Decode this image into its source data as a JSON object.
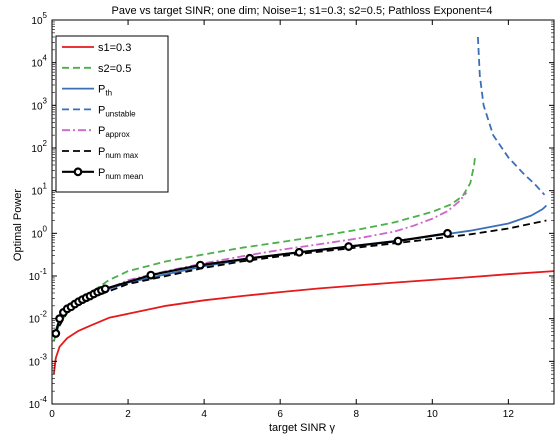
{
  "chart_data": {
    "type": "line",
    "title": "Pave vs target SINR; one dim; Noise=1; s1=0.3; s2=0.5; Pathloss Exponent=4",
    "xlabel": "target SINR γ",
    "ylabel": "Optimal Power",
    "xlim": [
      0,
      13.2
    ],
    "ylim": [
      0.0001,
      100000
    ],
    "yscale": "log",
    "grid": false,
    "legend_position": "top-left",
    "x_ticks": [
      {
        "value": 0,
        "label": "0"
      },
      {
        "value": 2,
        "label": "2"
      },
      {
        "value": 4,
        "label": "4"
      },
      {
        "value": 6,
        "label": "6"
      },
      {
        "value": 8,
        "label": "8"
      },
      {
        "value": 10,
        "label": "10"
      },
      {
        "value": 12,
        "label": "12"
      }
    ],
    "y_ticks": [
      {
        "value": 0.0001,
        "base": "10",
        "exp": "-4"
      },
      {
        "value": 0.001,
        "base": "10",
        "exp": "-3"
      },
      {
        "value": 0.01,
        "base": "10",
        "exp": "-2"
      },
      {
        "value": 0.1,
        "base": "10",
        "exp": "-1"
      },
      {
        "value": 1,
        "base": "10",
        "exp": "0"
      },
      {
        "value": 10,
        "base": "10",
        "exp": "1"
      },
      {
        "value": 100,
        "base": "10",
        "exp": "2"
      },
      {
        "value": 1000,
        "base": "10",
        "exp": "3"
      },
      {
        "value": 10000,
        "base": "10",
        "exp": "4"
      },
      {
        "value": 100000,
        "base": "10",
        "exp": "5"
      }
    ],
    "series": [
      {
        "name": "s1=0.3",
        "legend_main": "s1=0.3",
        "legend_sub": "",
        "color": "#e41a1c",
        "dash": "solid",
        "marker": "none",
        "points": [
          [
            0.05,
            0.0005
          ],
          [
            0.1,
            0.0012
          ],
          [
            0.2,
            0.0022
          ],
          [
            0.4,
            0.0035
          ],
          [
            0.7,
            0.0052
          ],
          [
            1.0,
            0.0068
          ],
          [
            1.5,
            0.0105
          ],
          [
            2.0,
            0.013
          ],
          [
            3.0,
            0.02
          ],
          [
            4.0,
            0.027
          ],
          [
            5.0,
            0.034
          ],
          [
            6.0,
            0.042
          ],
          [
            7.0,
            0.051
          ],
          [
            8.0,
            0.06
          ],
          [
            9.0,
            0.07
          ],
          [
            10.0,
            0.081
          ],
          [
            11.0,
            0.094
          ],
          [
            12.0,
            0.11
          ],
          [
            13.2,
            0.13
          ]
        ]
      },
      {
        "name": "s2=0.5",
        "legend_main": "s2=0.5",
        "legend_sub": "",
        "color": "#4daf4a",
        "dash": "7,4",
        "marker": "none",
        "points": [
          [
            0.05,
            0.003
          ],
          [
            0.2,
            0.008
          ],
          [
            0.5,
            0.017
          ],
          [
            1.0,
            0.04
          ],
          [
            1.5,
            0.08
          ],
          [
            2.0,
            0.13
          ],
          [
            3.0,
            0.22
          ],
          [
            4.0,
            0.32
          ],
          [
            5.0,
            0.46
          ],
          [
            6.0,
            0.62
          ],
          [
            7.0,
            0.85
          ],
          [
            8.0,
            1.2
          ],
          [
            9.0,
            1.8
          ],
          [
            10.0,
            3.2
          ],
          [
            10.5,
            4.8
          ],
          [
            10.8,
            7.5
          ],
          [
            11.0,
            15
          ],
          [
            11.1,
            40
          ],
          [
            11.13,
            70
          ]
        ]
      },
      {
        "name": "Pth",
        "legend_main": "P",
        "legend_sub": "th",
        "color": "#3a6fb8",
        "dash": "solid",
        "marker": "none",
        "points": [
          [
            0.05,
            0.004
          ],
          [
            0.2,
            0.01
          ],
          [
            0.5,
            0.019
          ],
          [
            1.0,
            0.032
          ],
          [
            1.5,
            0.05
          ],
          [
            2.0,
            0.07
          ],
          [
            3.0,
            0.11
          ],
          [
            4.0,
            0.17
          ],
          [
            5.0,
            0.24
          ],
          [
            6.0,
            0.32
          ],
          [
            7.0,
            0.41
          ],
          [
            8.0,
            0.52
          ],
          [
            9.0,
            0.66
          ],
          [
            10.0,
            0.86
          ],
          [
            11.0,
            1.15
          ],
          [
            12.0,
            1.7
          ],
          [
            12.6,
            2.6
          ],
          [
            12.9,
            3.7
          ],
          [
            13.0,
            4.5
          ]
        ]
      },
      {
        "name": "Punstable",
        "legend_main": "P",
        "legend_sub": "unstable",
        "color": "#3a6fb8",
        "dash": "7,4",
        "marker": "none",
        "points": [
          [
            11.2,
            40000
          ],
          [
            11.25,
            5000
          ],
          [
            11.35,
            1000
          ],
          [
            11.6,
            200
          ],
          [
            12.0,
            60
          ],
          [
            12.4,
            25
          ],
          [
            12.7,
            14
          ],
          [
            12.95,
            8
          ]
        ]
      },
      {
        "name": "Papprox",
        "legend_main": "P",
        "legend_sub": "approx",
        "color": "#cc66cc",
        "dash": "8,3,2,3",
        "marker": "none",
        "points": [
          [
            0.05,
            0.004
          ],
          [
            0.3,
            0.012
          ],
          [
            1.0,
            0.033
          ],
          [
            2.0,
            0.08
          ],
          [
            3.0,
            0.13
          ],
          [
            4.0,
            0.2
          ],
          [
            5.0,
            0.29
          ],
          [
            6.0,
            0.41
          ],
          [
            7.0,
            0.55
          ],
          [
            8.0,
            0.75
          ],
          [
            9.0,
            1.1
          ],
          [
            9.5,
            1.5
          ],
          [
            10.0,
            2.2
          ],
          [
            10.4,
            3.3
          ],
          [
            10.7,
            5.5
          ],
          [
            10.9,
            9
          ]
        ]
      },
      {
        "name": "Pnum max",
        "legend_main": "P",
        "legend_sub": "num max",
        "color": "#000000",
        "dash": "7,4",
        "marker": "none",
        "points": [
          [
            0.05,
            0.004
          ],
          [
            0.5,
            0.02
          ],
          [
            1.0,
            0.03
          ],
          [
            2.0,
            0.065
          ],
          [
            3.0,
            0.1
          ],
          [
            4.0,
            0.155
          ],
          [
            5.0,
            0.22
          ],
          [
            6.0,
            0.29
          ],
          [
            7.0,
            0.37
          ],
          [
            8.0,
            0.46
          ],
          [
            9.0,
            0.58
          ],
          [
            10.0,
            0.74
          ],
          [
            11.0,
            0.95
          ],
          [
            12.0,
            1.3
          ],
          [
            13.0,
            2.0
          ]
        ]
      },
      {
        "name": "Pnum mean",
        "legend_main": "P",
        "legend_sub": "num mean",
        "color": "#000000",
        "dash": "solid",
        "marker": "circle",
        "points": [
          [
            0.1,
            0.0045
          ],
          [
            0.2,
            0.01
          ],
          [
            0.3,
            0.014
          ],
          [
            0.4,
            0.017
          ],
          [
            0.5,
            0.019
          ],
          [
            0.6,
            0.022
          ],
          [
            0.7,
            0.025
          ],
          [
            0.8,
            0.028
          ],
          [
            0.9,
            0.031
          ],
          [
            1.0,
            0.034
          ],
          [
            1.1,
            0.038
          ],
          [
            1.2,
            0.042
          ],
          [
            1.3,
            0.046
          ],
          [
            1.4,
            0.05
          ],
          [
            2.6,
            0.105
          ],
          [
            3.9,
            0.18
          ],
          [
            5.2,
            0.26
          ],
          [
            6.5,
            0.36
          ],
          [
            7.8,
            0.49
          ],
          [
            9.1,
            0.66
          ],
          [
            10.4,
            1.0
          ]
        ]
      }
    ]
  }
}
